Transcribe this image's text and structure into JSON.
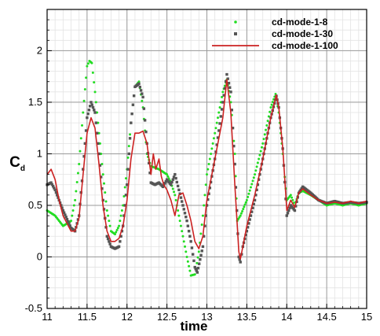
{
  "chart_data": {
    "type": "line",
    "title": "",
    "xlabel": "time",
    "ylabel": "C",
    "ylabel_subscript": "d",
    "xlim": [
      11,
      15
    ],
    "ylim": [
      -0.5,
      2.4
    ],
    "xticks": [
      11,
      11.5,
      12,
      12.5,
      13,
      13.5,
      14,
      14.5,
      15
    ],
    "xtick_labels": [
      "11",
      "11.5",
      "12",
      "12.5",
      "13",
      "13.5",
      "14",
      "14.5",
      "15"
    ],
    "yticks": [
      -0.5,
      0,
      0.5,
      1,
      1.5,
      2
    ],
    "ytick_labels": [
      "-0.5",
      "0",
      "0.5",
      "1",
      "1.5",
      "2"
    ],
    "grid": true,
    "legend_position": "top-right",
    "series": [
      {
        "name": "cd-mode-1-8",
        "style": "dotted-markers",
        "color": "#22dd22",
        "x": [
          11.0,
          11.1,
          11.2,
          11.3,
          11.35,
          11.4,
          11.45,
          11.5,
          11.53,
          11.56,
          11.6,
          11.65,
          11.7,
          11.75,
          11.8,
          11.85,
          11.9,
          11.95,
          12.0,
          12.05,
          12.1,
          12.15,
          12.2,
          12.25,
          12.3,
          12.4,
          12.5,
          12.55,
          12.6,
          12.65,
          12.7,
          12.75,
          12.8,
          12.85,
          12.9,
          12.95,
          13.0,
          13.1,
          13.2,
          13.25,
          13.3,
          13.35,
          13.38,
          13.42,
          13.5,
          13.6,
          13.7,
          13.8,
          13.86,
          13.9,
          13.95,
          14.0,
          14.05,
          14.1,
          14.15,
          14.2,
          14.3,
          14.4,
          14.5,
          14.6,
          14.7,
          14.8,
          14.9,
          15.0
        ],
        "y": [
          0.45,
          0.4,
          0.3,
          0.35,
          0.55,
          0.9,
          1.4,
          1.85,
          1.9,
          1.88,
          1.6,
          1.2,
          0.8,
          0.45,
          0.25,
          0.22,
          0.3,
          0.5,
          0.85,
          1.3,
          1.65,
          1.7,
          1.45,
          1.0,
          0.88,
          0.85,
          0.8,
          0.72,
          0.6,
          0.4,
          0.2,
          0.0,
          -0.18,
          -0.17,
          0.05,
          0.4,
          0.8,
          1.2,
          1.6,
          1.72,
          1.5,
          1.0,
          0.35,
          0.4,
          0.55,
          0.8,
          1.1,
          1.45,
          1.58,
          1.4,
          1.0,
          0.55,
          0.6,
          0.5,
          0.62,
          0.64,
          0.6,
          0.55,
          0.5,
          0.52,
          0.5,
          0.52,
          0.5,
          0.52
        ]
      },
      {
        "name": "cd-mode-1-30",
        "style": "square-markers",
        "color": "#555555",
        "x": [
          11.0,
          11.05,
          11.1,
          11.15,
          11.2,
          11.3,
          11.35,
          11.4,
          11.45,
          11.5,
          11.55,
          11.6,
          11.65,
          11.7,
          11.75,
          11.8,
          11.85,
          11.9,
          11.95,
          12.0,
          12.05,
          12.1,
          12.15,
          12.2,
          12.25,
          12.3,
          12.35,
          12.4,
          12.45,
          12.5,
          12.55,
          12.6,
          12.65,
          12.7,
          12.75,
          12.8,
          12.85,
          12.88,
          12.95,
          13.0,
          13.1,
          13.2,
          13.25,
          13.3,
          13.35,
          13.4,
          13.42,
          13.45,
          13.5,
          13.6,
          13.7,
          13.8,
          13.87,
          13.9,
          13.95,
          14.0,
          14.05,
          14.1,
          14.15,
          14.2,
          14.3,
          14.4,
          14.5,
          14.6,
          14.7,
          14.8,
          14.9,
          15.0
        ],
        "y": [
          0.7,
          0.72,
          0.65,
          0.55,
          0.45,
          0.28,
          0.25,
          0.4,
          0.85,
          1.35,
          1.5,
          1.4,
          1.0,
          0.55,
          0.2,
          0.1,
          0.08,
          0.1,
          0.3,
          0.7,
          1.3,
          1.65,
          1.68,
          1.55,
          1.1,
          0.72,
          0.7,
          0.72,
          0.68,
          0.75,
          0.7,
          0.8,
          0.65,
          0.5,
          0.35,
          0.15,
          -0.1,
          -0.15,
          0.1,
          0.5,
          0.95,
          1.5,
          1.77,
          1.6,
          0.9,
          0.0,
          -0.05,
          0.1,
          0.25,
          0.55,
          0.95,
          1.35,
          1.56,
          1.45,
          1.05,
          0.4,
          0.5,
          0.45,
          0.62,
          0.68,
          0.62,
          0.55,
          0.52,
          0.54,
          0.52,
          0.53,
          0.52,
          0.53
        ]
      },
      {
        "name": "cd-mode-1-100",
        "style": "solid-line",
        "color": "#cc2222",
        "x": [
          11.0,
          11.05,
          11.1,
          11.15,
          11.2,
          11.3,
          11.35,
          11.4,
          11.45,
          11.5,
          11.55,
          11.6,
          11.65,
          11.7,
          11.75,
          11.8,
          11.85,
          11.9,
          11.95,
          12.0,
          12.05,
          12.1,
          12.15,
          12.2,
          12.25,
          12.3,
          12.33,
          12.36,
          12.4,
          12.43,
          12.46,
          12.5,
          12.55,
          12.6,
          12.65,
          12.7,
          12.75,
          12.8,
          12.85,
          12.9,
          12.95,
          13.0,
          13.1,
          13.2,
          13.25,
          13.3,
          13.35,
          13.4,
          13.42,
          13.45,
          13.5,
          13.6,
          13.7,
          13.8,
          13.87,
          13.9,
          13.95,
          14.0,
          14.05,
          14.1,
          14.15,
          14.2,
          14.3,
          14.4,
          14.5,
          14.6,
          14.7,
          14.8,
          14.9,
          15.0
        ],
        "y": [
          0.8,
          0.85,
          0.75,
          0.55,
          0.4,
          0.25,
          0.25,
          0.38,
          0.8,
          1.2,
          1.35,
          1.25,
          0.9,
          0.5,
          0.25,
          0.15,
          0.15,
          0.18,
          0.3,
          0.55,
          0.95,
          1.2,
          1.2,
          1.22,
          1.1,
          0.8,
          1.0,
          0.85,
          0.95,
          0.78,
          0.7,
          0.65,
          0.55,
          0.4,
          0.6,
          0.62,
          0.5,
          0.35,
          0.15,
          0.08,
          0.2,
          0.55,
          0.95,
          1.35,
          1.72,
          1.4,
          0.7,
          0.05,
          -0.02,
          0.1,
          0.3,
          0.6,
          0.95,
          1.35,
          1.57,
          1.45,
          1.05,
          0.45,
          0.55,
          0.48,
          0.62,
          0.66,
          0.6,
          0.55,
          0.52,
          0.53,
          0.52,
          0.54,
          0.52,
          0.54
        ]
      }
    ]
  }
}
